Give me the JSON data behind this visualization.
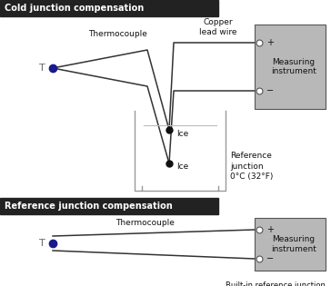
{
  "bg_color": "#ffffff",
  "dark_bg": "#222222",
  "gray_box": "#b8b8b8",
  "blue_dot": "#1a1a8c",
  "line_color": "#333333",
  "title1": "Cold junction compensation",
  "title2": "Reference junction compensation",
  "label_thermocouple1": "Thermocouple",
  "label_copper": "Copper\nlead wire",
  "label_measuring": "Measuring\ninstrument",
  "label_ice1": "Ice",
  "label_ice2": "Ice",
  "label_reference": "Reference\njunction\n0°C (32°F)",
  "label_thermocouple2": "Thermocouple",
  "label_builtin": "Built-in reference junction\ncompensation circuit",
  "label_T1": "T",
  "label_T2": "T",
  "plus": "+",
  "minus": "−"
}
